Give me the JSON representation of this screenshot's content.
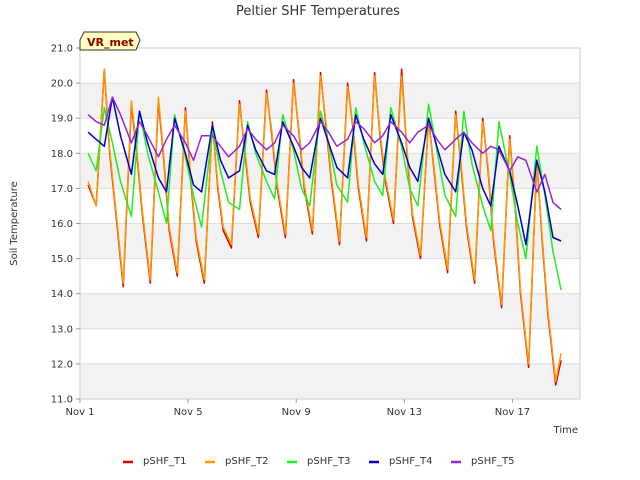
{
  "chart_data": {
    "type": "line",
    "title": "Peltier SHF Temperatures",
    "xlabel": "Time",
    "ylabel": "Soil Temperature",
    "badge": "VR_met",
    "x_range": [
      1,
      19.5
    ],
    "ylim": [
      11.0,
      21.0
    ],
    "yticks": [
      "11.0",
      "12.0",
      "13.0",
      "14.0",
      "15.0",
      "16.0",
      "17.0",
      "18.0",
      "19.0",
      "20.0",
      "21.0"
    ],
    "xticks": [
      {
        "label": "Nov 1",
        "value": 1
      },
      {
        "label": "Nov 5",
        "value": 5
      },
      {
        "label": "Nov 9",
        "value": 9
      },
      {
        "label": "Nov 13",
        "value": 13
      },
      {
        "label": "Nov 17",
        "value": 17
      }
    ],
    "grid": true,
    "legend_position": "bottom",
    "series": [
      {
        "name": "pSHF_T1",
        "color": "#dd0000",
        "x": [
          1.3,
          1.6,
          1.9,
          2.1,
          2.3,
          2.6,
          2.9,
          3.1,
          3.3,
          3.6,
          3.9,
          4.1,
          4.3,
          4.6,
          4.9,
          5.1,
          5.3,
          5.6,
          5.9,
          6.1,
          6.3,
          6.6,
          6.9,
          7.1,
          7.3,
          7.6,
          7.9,
          8.1,
          8.3,
          8.6,
          8.9,
          9.1,
          9.3,
          9.6,
          9.9,
          10.1,
          10.3,
          10.6,
          10.9,
          11.1,
          11.3,
          11.6,
          11.9,
          12.1,
          12.3,
          12.6,
          12.9,
          13.1,
          13.3,
          13.6,
          13.9,
          14.1,
          14.3,
          14.6,
          14.9,
          15.1,
          15.3,
          15.6,
          15.9,
          16.1,
          16.3,
          16.6,
          16.9,
          17.1,
          17.3,
          17.6,
          17.9,
          18.1,
          18.3,
          18.6,
          18.8
        ],
        "y": [
          17.1,
          16.5,
          20.4,
          18.0,
          16.5,
          14.2,
          19.4,
          18.0,
          16.3,
          14.3,
          19.5,
          17.8,
          15.8,
          14.5,
          19.3,
          17.2,
          15.5,
          14.3,
          18.9,
          17.0,
          15.8,
          15.3,
          19.5,
          18.0,
          16.6,
          15.6,
          19.8,
          18.5,
          17.0,
          15.6,
          20.1,
          18.6,
          17.0,
          15.7,
          20.3,
          18.8,
          17.2,
          15.4,
          20.0,
          18.7,
          17.0,
          15.5,
          20.3,
          18.5,
          17.2,
          16.0,
          20.4,
          18.0,
          16.2,
          15.0,
          19.0,
          17.5,
          16.0,
          14.6,
          19.2,
          17.6,
          15.9,
          14.3,
          19.0,
          17.5,
          15.5,
          13.6,
          18.5,
          16.5,
          14.0,
          11.9,
          17.8,
          15.5,
          13.5,
          11.4,
          12.1
        ]
      },
      {
        "name": "pSHF_T2",
        "color": "#ff9900",
        "x": [
          1.3,
          1.6,
          1.9,
          2.1,
          2.3,
          2.6,
          2.9,
          3.1,
          3.3,
          3.6,
          3.9,
          4.1,
          4.3,
          4.6,
          4.9,
          5.1,
          5.3,
          5.6,
          5.9,
          6.1,
          6.3,
          6.6,
          6.9,
          7.1,
          7.3,
          7.6,
          7.9,
          8.1,
          8.3,
          8.6,
          8.9,
          9.1,
          9.3,
          9.6,
          9.9,
          10.1,
          10.3,
          10.6,
          10.9,
          11.1,
          11.3,
          11.6,
          11.9,
          12.1,
          12.3,
          12.6,
          12.9,
          13.1,
          13.3,
          13.6,
          13.9,
          14.1,
          14.3,
          14.6,
          14.9,
          15.1,
          15.3,
          15.6,
          15.9,
          16.1,
          16.3,
          16.6,
          16.9,
          17.1,
          17.3,
          17.6,
          17.9,
          18.1,
          18.3,
          18.6,
          18.8
        ],
        "y": [
          17.2,
          16.5,
          20.4,
          18.1,
          16.6,
          14.3,
          19.5,
          18.1,
          16.4,
          14.4,
          19.6,
          17.9,
          15.9,
          14.6,
          19.2,
          17.3,
          15.6,
          14.4,
          18.8,
          17.1,
          15.9,
          15.4,
          19.4,
          18.1,
          16.7,
          15.7,
          19.7,
          18.6,
          17.1,
          15.7,
          20.0,
          18.7,
          17.1,
          15.8,
          20.2,
          18.9,
          17.3,
          15.5,
          19.9,
          18.8,
          17.1,
          15.6,
          20.2,
          18.6,
          17.3,
          16.1,
          20.2,
          18.1,
          16.3,
          15.1,
          18.9,
          17.6,
          16.1,
          14.7,
          19.1,
          17.7,
          16.0,
          14.4,
          18.9,
          17.6,
          15.6,
          13.7,
          18.4,
          16.6,
          14.1,
          12.0,
          17.7,
          15.6,
          13.6,
          11.5,
          12.3
        ]
      },
      {
        "name": "pSHF_T3",
        "color": "#22ee22",
        "x": [
          1.3,
          1.6,
          1.9,
          2.2,
          2.5,
          2.9,
          3.2,
          3.5,
          3.9,
          4.2,
          4.5,
          4.9,
          5.2,
          5.5,
          5.9,
          6.2,
          6.5,
          6.9,
          7.2,
          7.5,
          7.9,
          8.2,
          8.5,
          8.9,
          9.2,
          9.5,
          9.9,
          10.2,
          10.5,
          10.9,
          11.2,
          11.5,
          11.9,
          12.2,
          12.5,
          12.9,
          13.2,
          13.5,
          13.9,
          14.2,
          14.5,
          14.9,
          15.2,
          15.5,
          15.9,
          16.2,
          16.5,
          16.9,
          17.2,
          17.5,
          17.9,
          18.2,
          18.5,
          18.8
        ],
        "y": [
          18.0,
          17.5,
          19.3,
          18.3,
          17.2,
          16.2,
          19.2,
          18.0,
          16.9,
          16.0,
          19.1,
          17.9,
          16.8,
          15.9,
          18.7,
          17.5,
          16.6,
          16.4,
          18.9,
          18.0,
          17.2,
          16.7,
          19.1,
          18.1,
          17.0,
          16.5,
          19.2,
          18.3,
          17.1,
          16.6,
          19.3,
          18.3,
          17.2,
          16.8,
          19.3,
          18.2,
          17.0,
          16.5,
          19.4,
          18.1,
          16.8,
          16.2,
          19.2,
          17.7,
          16.5,
          15.8,
          18.9,
          17.4,
          16.0,
          15.0,
          18.2,
          16.8,
          15.2,
          14.1
        ]
      },
      {
        "name": "pSHF_T4",
        "color": "#0000cc",
        "x": [
          1.3,
          1.6,
          1.9,
          2.2,
          2.5,
          2.9,
          3.2,
          3.5,
          3.9,
          4.2,
          4.5,
          4.9,
          5.2,
          5.5,
          5.9,
          6.2,
          6.5,
          6.9,
          7.2,
          7.5,
          7.9,
          8.2,
          8.5,
          8.9,
          9.2,
          9.5,
          9.9,
          10.2,
          10.5,
          10.9,
          11.2,
          11.5,
          11.9,
          12.2,
          12.5,
          12.9,
          13.2,
          13.5,
          13.9,
          14.2,
          14.5,
          14.9,
          15.2,
          15.5,
          15.9,
          16.2,
          16.5,
          16.9,
          17.2,
          17.5,
          17.9,
          18.2,
          18.5,
          18.8
        ],
        "y": [
          18.6,
          18.4,
          18.2,
          19.6,
          18.5,
          17.4,
          19.2,
          18.3,
          17.3,
          16.9,
          19.0,
          18.0,
          17.1,
          16.9,
          18.8,
          17.8,
          17.3,
          17.5,
          18.8,
          18.1,
          17.5,
          17.4,
          18.9,
          18.2,
          17.6,
          17.3,
          19.0,
          18.3,
          17.6,
          17.3,
          19.1,
          18.4,
          17.7,
          17.4,
          19.1,
          18.3,
          17.6,
          17.2,
          19.0,
          18.2,
          17.4,
          16.9,
          18.6,
          18.1,
          17.0,
          16.5,
          18.2,
          17.5,
          16.5,
          15.4,
          17.8,
          16.9,
          15.6,
          15.5
        ]
      },
      {
        "name": "pSHF_T5",
        "color": "#9922dd",
        "x": [
          1.3,
          1.6,
          1.9,
          2.2,
          2.5,
          2.9,
          3.2,
          3.5,
          3.9,
          4.2,
          4.5,
          4.9,
          5.2,
          5.5,
          5.9,
          6.2,
          6.5,
          6.9,
          7.2,
          7.5,
          7.9,
          8.2,
          8.5,
          8.9,
          9.2,
          9.5,
          9.9,
          10.2,
          10.5,
          10.9,
          11.2,
          11.5,
          11.9,
          12.2,
          12.5,
          12.9,
          13.2,
          13.5,
          13.9,
          14.2,
          14.5,
          14.9,
          15.2,
          15.5,
          15.9,
          16.2,
          16.5,
          16.9,
          17.2,
          17.5,
          17.9,
          18.2,
          18.5,
          18.8
        ],
        "y": [
          19.1,
          18.9,
          18.8,
          19.6,
          19.1,
          18.3,
          18.9,
          18.5,
          17.9,
          18.4,
          18.8,
          18.3,
          17.8,
          18.5,
          18.5,
          18.2,
          17.9,
          18.2,
          18.7,
          18.4,
          18.1,
          18.3,
          18.8,
          18.5,
          18.1,
          18.3,
          18.9,
          18.6,
          18.2,
          18.4,
          18.9,
          18.7,
          18.3,
          18.5,
          18.9,
          18.6,
          18.3,
          18.6,
          18.8,
          18.4,
          18.1,
          18.4,
          18.6,
          18.3,
          18.0,
          18.2,
          18.1,
          17.5,
          17.9,
          17.8,
          16.9,
          17.4,
          16.6,
          16.4
        ]
      }
    ]
  }
}
